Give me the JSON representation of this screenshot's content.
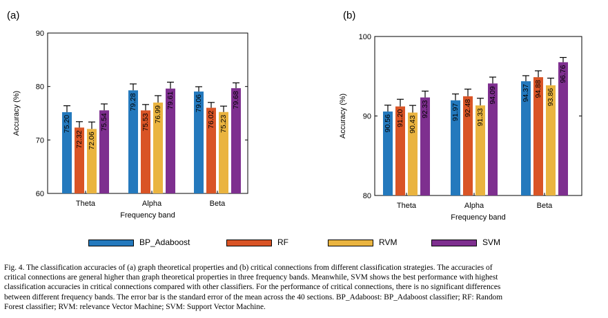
{
  "chart_data": [
    {
      "type": "bar",
      "panel_label": "(a)",
      "title": "",
      "xlabel": "Frequency band",
      "ylabel": "Accuracy (%)",
      "ylim": [
        60,
        90
      ],
      "yticks": [
        "60",
        "70",
        "80",
        "90"
      ],
      "grid": false,
      "categories": [
        "Theta",
        "Alpha",
        "Beta"
      ],
      "series": [
        {
          "name": "BP_Adaboost",
          "values": [
            75.2,
            79.28,
            79.06
          ],
          "errors": [
            1.2,
            1.2,
            0.9
          ],
          "labels": [
            "75.20",
            "79.28",
            "79.06"
          ]
        },
        {
          "name": "RF",
          "values": [
            72.32,
            75.53,
            76.02
          ],
          "errors": [
            1.1,
            1.1,
            1.0
          ],
          "labels": [
            "72.32",
            "75.53",
            "76.02"
          ]
        },
        {
          "name": "RVM",
          "values": [
            72.06,
            76.99,
            75.23
          ],
          "errors": [
            1.3,
            1.3,
            1.1
          ],
          "labels": [
            "72.06",
            "76.99",
            "75.23"
          ]
        },
        {
          "name": "SVM",
          "values": [
            75.54,
            79.61,
            79.68
          ],
          "errors": [
            1.2,
            1.2,
            1.0
          ],
          "labels": [
            "75.54",
            "79.61",
            "79.68"
          ]
        }
      ]
    },
    {
      "type": "bar",
      "panel_label": "(b)",
      "title": "",
      "xlabel": "Frequency band",
      "ylabel": "Accuracy (%)",
      "ylim": [
        80,
        100
      ],
      "yticks": [
        "80",
        "90",
        "100"
      ],
      "grid": false,
      "categories": [
        "Theta",
        "Alpha",
        "Beta"
      ],
      "series": [
        {
          "name": "BP_Adaboost",
          "values": [
            90.56,
            91.97,
            94.37
          ],
          "errors": [
            0.8,
            0.8,
            0.7
          ],
          "labels": [
            "90.56",
            "91.97",
            "94.37"
          ]
        },
        {
          "name": "RF",
          "values": [
            91.2,
            92.48,
            94.88
          ],
          "errors": [
            0.9,
            0.9,
            0.8
          ],
          "labels": [
            "91.20",
            "92.48",
            "94.88"
          ]
        },
        {
          "name": "RVM",
          "values": [
            90.43,
            91.33,
            93.86
          ],
          "errors": [
            0.9,
            0.9,
            0.9
          ],
          "labels": [
            "90.43",
            "91.33",
            "93.86"
          ]
        },
        {
          "name": "SVM",
          "values": [
            92.33,
            94.09,
            96.76
          ],
          "errors": [
            0.8,
            0.8,
            0.6
          ],
          "labels": [
            "92.33",
            "94.09",
            "96.76"
          ]
        }
      ]
    }
  ],
  "colors": {
    "BP_Adaboost": "#2479bd",
    "RF": "#d95426",
    "RVM": "#eab440",
    "SVM": "#7e2f8f"
  },
  "legend": {
    "items": [
      {
        "name": "BP_Adaboost"
      },
      {
        "name": "RF"
      },
      {
        "name": "RVM"
      },
      {
        "name": "SVM"
      }
    ]
  },
  "caption": {
    "lines": [
      "Fig. 4.  The classification accuracies of (a) graph theoretical properties and (b) critical connections from different classification strategies. The accuracies of",
      "critical connections are general higher than graph theoretical properties in three frequency bands. Meanwhile, SVM shows the best performance with highest",
      "classification accuracies in critical connections compared with other classifiers. For the performance of critical connections, there is no significant differences",
      "between different frequency bands. The error bar is the standard error of the mean across the 40 sections. BP_Adaboost: BP_Adaboost classifier; RF: Random",
      "Forest classifier; RVM: relevance Vector Machine; SVM: Support Vector Machine."
    ]
  }
}
